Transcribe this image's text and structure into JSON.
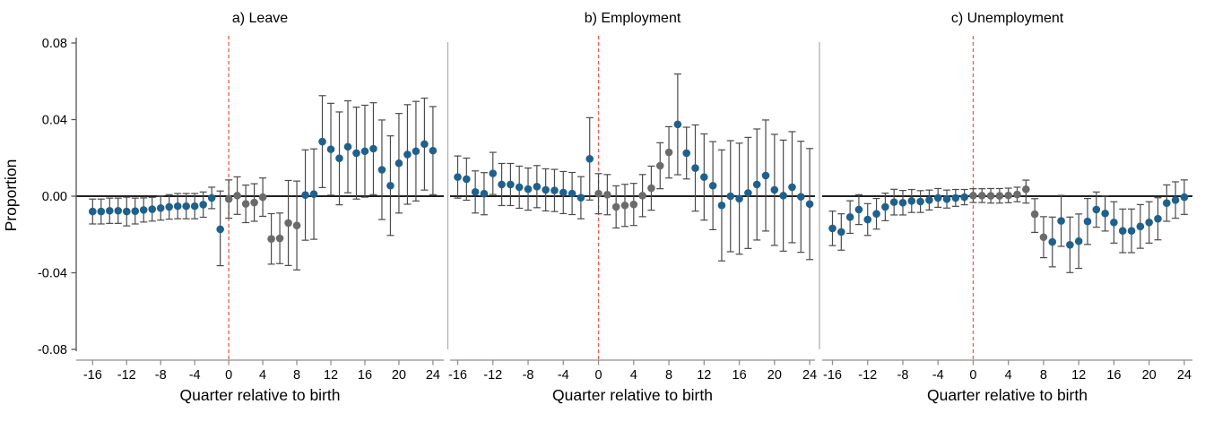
{
  "figure": {
    "ylabel": "Proportion",
    "xlabel": "Quarter relative to birth",
    "y_tick_labels": [
      "0.08",
      "0.04",
      "0.00",
      "-0.04",
      "-0.08"
    ],
    "y_tick_values": [
      0.08,
      0.04,
      0.0,
      -0.04,
      -0.08
    ],
    "x_tick_values": [
      -16,
      -12,
      -8,
      -4,
      0,
      4,
      8,
      12,
      16,
      20,
      24
    ],
    "ylim": [
      -0.08,
      0.08
    ],
    "xlim": [
      -16,
      24
    ],
    "event_line_x": 0,
    "gray_quarters": [
      0,
      1,
      2,
      3,
      4,
      5,
      6,
      7,
      8
    ],
    "colors": {
      "point_blue": "#1F618C",
      "point_gray": "#6B6B6B",
      "ci_bar": "#4A4A4A",
      "zero_line": "#000000",
      "event_line": "#F0594E",
      "x_axis": "#8F8F8F",
      "y_axis": "#555555",
      "panel_separator": "#ABABAB"
    }
  },
  "chart_data": [
    {
      "type": "scatter",
      "title": "a) Leave",
      "xlabel": "Quarter relative to birth",
      "ylabel": "Proportion",
      "x": [
        -16,
        -15,
        -14,
        -13,
        -12,
        -11,
        -10,
        -9,
        -8,
        -7,
        -6,
        -5,
        -4,
        -3,
        -2,
        -1,
        0,
        1,
        2,
        3,
        4,
        5,
        6,
        7,
        8,
        9,
        10,
        11,
        12,
        13,
        14,
        15,
        16,
        17,
        18,
        19,
        20,
        21,
        22,
        23,
        24
      ],
      "y": [
        -0.008,
        -0.008,
        -0.0076,
        -0.0076,
        -0.008,
        -0.0078,
        -0.0072,
        -0.0068,
        -0.0062,
        -0.0056,
        -0.0052,
        -0.0052,
        -0.0052,
        -0.0044,
        -0.0009,
        -0.0173,
        -0.0015,
        0.0003,
        -0.004,
        -0.0033,
        -0.0005,
        -0.0223,
        -0.022,
        -0.014,
        -0.0153,
        0.0006,
        0.0011,
        0.0285,
        0.0245,
        0.0198,
        0.0258,
        0.0225,
        0.0235,
        0.0248,
        0.0138,
        0.0055,
        0.0172,
        0.0218,
        0.0235,
        0.0272,
        0.0238
      ],
      "ci_low": [
        -0.0145,
        -0.0145,
        -0.0142,
        -0.0142,
        -0.0155,
        -0.0145,
        -0.0135,
        -0.013,
        -0.0125,
        -0.012,
        -0.0118,
        -0.0118,
        -0.0118,
        -0.011,
        -0.0065,
        -0.0363,
        -0.0115,
        -0.0095,
        -0.0138,
        -0.0131,
        -0.0105,
        -0.0355,
        -0.0352,
        -0.0362,
        -0.0385,
        -0.023,
        -0.0225,
        0.0045,
        0.0005,
        -0.0045,
        0.0018,
        -0.0015,
        -0.0005,
        0.0008,
        -0.0122,
        -0.0205,
        -0.0088,
        -0.0042,
        -0.0025,
        0.0032,
        0.0008
      ],
      "ci_high": [
        -0.0015,
        -0.0015,
        -0.001,
        -0.001,
        -0.0005,
        -0.001,
        -0.0009,
        -0.0006,
        0.0001,
        0.0008,
        0.0014,
        0.0014,
        0.0014,
        0.0022,
        0.0047,
        0.0027,
        0.0085,
        0.0101,
        0.0058,
        0.0065,
        0.0095,
        -0.0091,
        -0.0088,
        0.0082,
        0.0079,
        0.0242,
        0.0247,
        0.0525,
        0.0485,
        0.044,
        0.0498,
        0.0465,
        0.0475,
        0.0488,
        0.0398,
        0.0315,
        0.0432,
        0.0478,
        0.0495,
        0.0512,
        0.0468
      ]
    },
    {
      "type": "scatter",
      "title": "b) Employment",
      "xlabel": "Quarter relative to birth",
      "ylabel": "Proportion",
      "x": [
        -16,
        -15,
        -14,
        -13,
        -12,
        -11,
        -10,
        -9,
        -8,
        -7,
        -6,
        -5,
        -4,
        -3,
        -2,
        -1,
        0,
        1,
        2,
        3,
        4,
        5,
        6,
        7,
        8,
        9,
        10,
        11,
        12,
        13,
        14,
        15,
        16,
        17,
        18,
        19,
        20,
        21,
        22,
        23,
        24
      ],
      "y": [
        0.01,
        0.0089,
        0.0022,
        0.0013,
        0.0119,
        0.0061,
        0.0061,
        0.0047,
        0.0037,
        0.005,
        0.0033,
        0.003,
        0.0019,
        0.0014,
        -0.0008,
        0.0195,
        0.0013,
        0.0008,
        -0.0056,
        -0.0048,
        -0.0043,
        0.0003,
        0.0042,
        0.0159,
        0.0229,
        0.0375,
        0.0225,
        0.0147,
        0.01,
        0.0055,
        -0.0048,
        0.0,
        -0.0013,
        0.0017,
        0.0061,
        0.0108,
        0.0033,
        0.0003,
        0.0047,
        -0.0003,
        -0.0041
      ],
      "ci_low": [
        -0.001,
        -0.0021,
        -0.0088,
        -0.0097,
        0.0009,
        -0.0049,
        -0.0049,
        -0.0063,
        -0.0073,
        -0.006,
        -0.0077,
        -0.008,
        -0.0091,
        -0.0096,
        -0.0118,
        -0.002,
        -0.0092,
        -0.0097,
        -0.0166,
        -0.0158,
        -0.0153,
        -0.0107,
        -0.0073,
        0.0039,
        0.0095,
        0.0112,
        0.009,
        -0.0078,
        -0.0125,
        -0.0175,
        -0.0338,
        -0.029,
        -0.0303,
        -0.0273,
        -0.0229,
        -0.0182,
        -0.0257,
        -0.0287,
        -0.0243,
        -0.0293,
        -0.0331
      ],
      "ci_high": [
        0.021,
        0.0199,
        0.0132,
        0.0123,
        0.0229,
        0.0171,
        0.0171,
        0.0157,
        0.0147,
        0.016,
        0.0143,
        0.014,
        0.0129,
        0.0124,
        0.0102,
        0.041,
        0.0118,
        0.0113,
        0.0054,
        0.0062,
        0.0067,
        0.0113,
        0.0157,
        0.0279,
        0.0363,
        0.0638,
        0.036,
        0.0372,
        0.0325,
        0.0285,
        0.0242,
        0.029,
        0.0277,
        0.0307,
        0.0351,
        0.0398,
        0.0323,
        0.0293,
        0.0337,
        0.0287,
        0.0249
      ]
    },
    {
      "type": "scatter",
      "title": "c) Unemployment",
      "xlabel": "Quarter relative to birth",
      "ylabel": "Proportion",
      "x": [
        -16,
        -15,
        -14,
        -13,
        -12,
        -11,
        -10,
        -9,
        -8,
        -7,
        -6,
        -5,
        -4,
        -3,
        -2,
        -1,
        0,
        1,
        2,
        3,
        4,
        5,
        6,
        7,
        8,
        9,
        10,
        11,
        12,
        13,
        14,
        15,
        16,
        17,
        18,
        19,
        20,
        21,
        22,
        23,
        24
      ],
      "y": [
        -0.0168,
        -0.0187,
        -0.0109,
        -0.007,
        -0.0122,
        -0.0092,
        -0.0056,
        -0.0031,
        -0.0034,
        -0.0025,
        -0.0028,
        -0.002,
        -0.0009,
        -0.0015,
        -0.0009,
        -0.0005,
        0.0003,
        0.0003,
        0.0002,
        0.0002,
        0.0004,
        0.0009,
        0.0036,
        -0.0094,
        -0.0214,
        -0.0239,
        -0.0129,
        -0.0254,
        -0.0235,
        -0.0132,
        -0.007,
        -0.009,
        -0.0137,
        -0.0181,
        -0.0181,
        -0.0158,
        -0.0137,
        -0.0118,
        -0.0036,
        -0.002,
        -0.0005
      ],
      "ci_low": [
        -0.0258,
        -0.0282,
        -0.0194,
        -0.0148,
        -0.0205,
        -0.0172,
        -0.0128,
        -0.0098,
        -0.0098,
        -0.0085,
        -0.0085,
        -0.0072,
        -0.0058,
        -0.0062,
        -0.0053,
        -0.0045,
        -0.0033,
        -0.0033,
        -0.0036,
        -0.0036,
        -0.0034,
        -0.0029,
        -0.0036,
        -0.0189,
        -0.0321,
        -0.0369,
        -0.0262,
        -0.0399,
        -0.0377,
        -0.0252,
        -0.0162,
        -0.0182,
        -0.0245,
        -0.0295,
        -0.0295,
        -0.0272,
        -0.0245,
        -0.0228,
        -0.0131,
        -0.0115,
        -0.0095
      ],
      "ci_high": [
        -0.0078,
        -0.0092,
        -0.0024,
        0.0008,
        -0.0039,
        -0.0012,
        0.0016,
        0.0036,
        0.003,
        0.0035,
        0.0029,
        0.0032,
        0.004,
        0.0032,
        0.0035,
        0.0035,
        0.0039,
        0.0039,
        0.004,
        0.004,
        0.0042,
        0.0047,
        0.0084,
        -0.0013,
        -0.0107,
        -0.0109,
        0.0004,
        -0.0109,
        -0.0093,
        -0.0012,
        0.0022,
        0.0002,
        -0.0029,
        -0.0067,
        -0.0067,
        -0.0044,
        -0.0029,
        -0.0008,
        0.0059,
        0.0075,
        0.0085
      ]
    }
  ]
}
